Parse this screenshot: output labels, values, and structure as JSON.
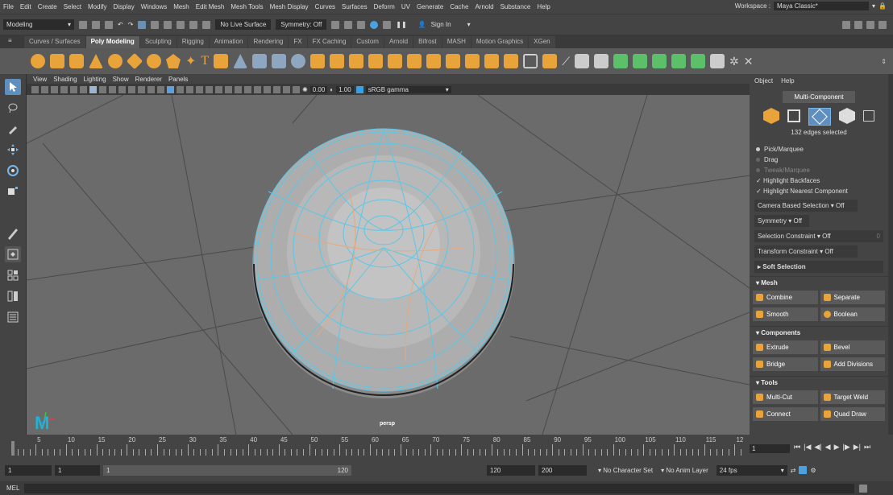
{
  "menubar": {
    "items": [
      "File",
      "Edit",
      "Create",
      "Select",
      "Modify",
      "Display",
      "Windows",
      "Mesh",
      "Edit Mesh",
      "Mesh Tools",
      "Mesh Display",
      "Curves",
      "Surfaces",
      "Deform",
      "UV",
      "Generate",
      "Cache",
      "Arnold",
      "Substance",
      "Help"
    ],
    "workspace_label": "Workspace :",
    "workspace_value": "Maya Classic*"
  },
  "statusline": {
    "mode": "Modeling",
    "live_surface": "No Live Surface",
    "symmetry": "Symmetry: Off",
    "sign_in": "Sign In"
  },
  "shelf_tabs": [
    "Curves / Surfaces",
    "Poly Modeling",
    "Sculpting",
    "Rigging",
    "Animation",
    "Rendering",
    "FX",
    "FX Caching",
    "Custom",
    "Arnold",
    "Bifrost",
    "MASH",
    "Motion Graphics",
    "XGen"
  ],
  "panel": {
    "menus": [
      "View",
      "Shading",
      "Lighting",
      "Show",
      "Renderer",
      "Panels"
    ],
    "exposure": "0.00",
    "gamma": "1.00",
    "color_space": "sRGB gamma",
    "camera": "persp"
  },
  "modeling_toolkit": {
    "menus": [
      "Object",
      "Help"
    ],
    "mode_button": "Multi-Component",
    "status": "132 edges selected",
    "pick_marquee": "Pick/Marquee",
    "drag": "Drag",
    "tweak_marquee": "Tweak/Marquee",
    "highlight_backfaces": "Highlight Backfaces",
    "highlight_nearest": "Highlight Nearest Component",
    "camera_based": "Camera Based Selection",
    "camera_based_value": "Off",
    "symmetry": "Symmetry",
    "symmetry_value": "Off",
    "sel_constraint": "Selection Constraint",
    "sel_constraint_value": "Off",
    "sel_constraint_num": "0",
    "transform_constraint": "Transform Constraint",
    "transform_constraint_value": "Off",
    "soft_selection": "Soft Selection",
    "mesh_section": "Mesh",
    "combine": "Combine",
    "separate": "Separate",
    "smooth": "Smooth",
    "boolean": "Boolean",
    "components_section": "Components",
    "extrude": "Extrude",
    "bevel": "Bevel",
    "bridge": "Bridge",
    "add_divisions": "Add Divisions",
    "tools_section": "Tools",
    "multi_cut": "Multi-Cut",
    "target_weld": "Target Weld",
    "connect": "Connect",
    "quad_draw": "Quad Draw"
  },
  "timeline": {
    "tick_labels": [
      "5",
      "10",
      "15",
      "20",
      "25",
      "30",
      "35",
      "40",
      "45",
      "50",
      "55",
      "60",
      "65",
      "70",
      "75",
      "80",
      "85",
      "90",
      "95",
      "100",
      "105",
      "110",
      "115",
      "12"
    ],
    "start_tick": "1",
    "current_frame": "1"
  },
  "range": {
    "start": "1",
    "anim_start": "1",
    "slider_start": "1",
    "slider_end": "120",
    "anim_end": "120",
    "end": "200",
    "character_set": "No Character Set",
    "anim_layer": "No Anim Layer",
    "fps": "24 fps"
  },
  "cmdline": {
    "label": "MEL"
  }
}
